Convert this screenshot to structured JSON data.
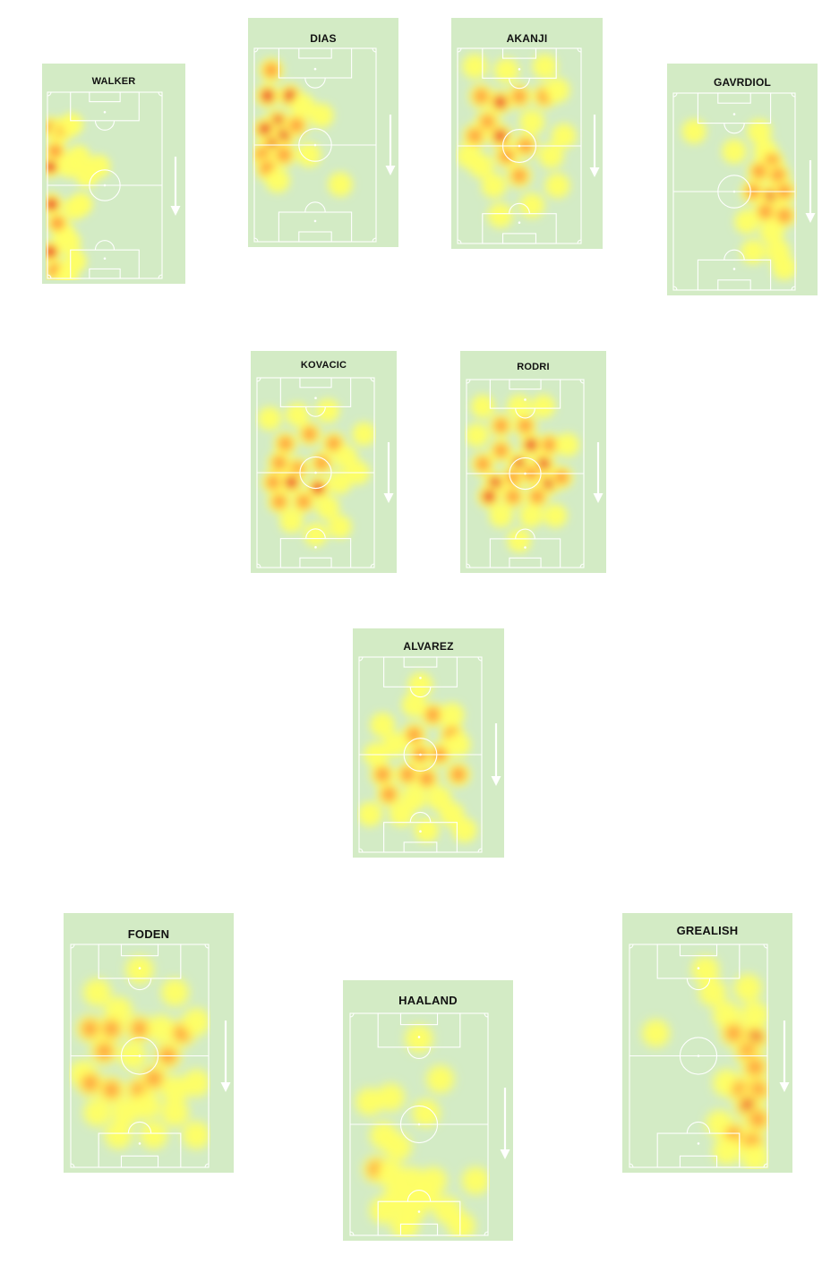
{
  "players": [
    {
      "id": "walker",
      "name": "WALKER",
      "blobs": [
        [
          5,
          20,
          3
        ],
        [
          4,
          40,
          3
        ],
        [
          5,
          60,
          3
        ],
        [
          4,
          85,
          3
        ],
        [
          12,
          22,
          2
        ],
        [
          16,
          20,
          2
        ],
        [
          8,
          32,
          2
        ],
        [
          22,
          18,
          1
        ],
        [
          20,
          40,
          1
        ],
        [
          28,
          35,
          1
        ],
        [
          35,
          45,
          1
        ],
        [
          45,
          40,
          1
        ],
        [
          30,
          60,
          1
        ],
        [
          25,
          62,
          1
        ],
        [
          15,
          75,
          1
        ],
        [
          10,
          70,
          2
        ],
        [
          20,
          80,
          1
        ],
        [
          25,
          90,
          1
        ],
        [
          8,
          95,
          2
        ],
        [
          18,
          98,
          1
        ]
      ]
    },
    {
      "id": "dias",
      "name": "DIAS",
      "blobs": [
        [
          15,
          12,
          2
        ],
        [
          12,
          25,
          3
        ],
        [
          30,
          25,
          3
        ],
        [
          20,
          38,
          3
        ],
        [
          10,
          42,
          3
        ],
        [
          25,
          45,
          3
        ],
        [
          35,
          40,
          2
        ],
        [
          15,
          50,
          3
        ],
        [
          8,
          55,
          2
        ],
        [
          25,
          55,
          2
        ],
        [
          12,
          62,
          2
        ],
        [
          20,
          68,
          1
        ],
        [
          40,
          30,
          1
        ],
        [
          55,
          35,
          1
        ],
        [
          70,
          70,
          1
        ],
        [
          45,
          55,
          1
        ]
      ]
    },
    {
      "id": "akanji",
      "name": "AKANJI",
      "blobs": [
        [
          15,
          10,
          1
        ],
        [
          40,
          12,
          1
        ],
        [
          70,
          10,
          1
        ],
        [
          20,
          25,
          2
        ],
        [
          35,
          28,
          3
        ],
        [
          50,
          25,
          2
        ],
        [
          70,
          25,
          2
        ],
        [
          25,
          38,
          2
        ],
        [
          35,
          45,
          3
        ],
        [
          60,
          38,
          1
        ],
        [
          80,
          22,
          1
        ],
        [
          15,
          45,
          2
        ],
        [
          40,
          55,
          2
        ],
        [
          55,
          50,
          2
        ],
        [
          75,
          55,
          1
        ],
        [
          20,
          60,
          1
        ],
        [
          30,
          70,
          1
        ],
        [
          50,
          65,
          2
        ],
        [
          80,
          70,
          1
        ],
        [
          10,
          55,
          1
        ],
        [
          60,
          80,
          1
        ],
        [
          35,
          85,
          1
        ],
        [
          85,
          45,
          1
        ]
      ]
    },
    {
      "id": "gavrdiol",
      "name": "GAVRDIOL",
      "blobs": [
        [
          70,
          20,
          1
        ],
        [
          75,
          30,
          1
        ],
        [
          80,
          35,
          2
        ],
        [
          70,
          40,
          2
        ],
        [
          85,
          42,
          2
        ],
        [
          65,
          50,
          2
        ],
        [
          80,
          52,
          3
        ],
        [
          90,
          50,
          2
        ],
        [
          75,
          60,
          2
        ],
        [
          90,
          62,
          2
        ],
        [
          60,
          65,
          1
        ],
        [
          80,
          70,
          1
        ],
        [
          65,
          80,
          1
        ],
        [
          85,
          80,
          1
        ],
        [
          90,
          88,
          1
        ],
        [
          18,
          20,
          1
        ],
        [
          50,
          30,
          1
        ]
      ]
    },
    {
      "id": "kovacic",
      "name": "KOVACIC",
      "blobs": [
        [
          12,
          22,
          1
        ],
        [
          35,
          20,
          1
        ],
        [
          60,
          18,
          1
        ],
        [
          25,
          35,
          2
        ],
        [
          45,
          30,
          2
        ],
        [
          65,
          35,
          2
        ],
        [
          20,
          45,
          2
        ],
        [
          35,
          48,
          2
        ],
        [
          55,
          45,
          2
        ],
        [
          75,
          42,
          1
        ],
        [
          15,
          55,
          2
        ],
        [
          30,
          55,
          3
        ],
        [
          52,
          58,
          3
        ],
        [
          70,
          55,
          1
        ],
        [
          20,
          65,
          2
        ],
        [
          40,
          65,
          2
        ],
        [
          60,
          68,
          1
        ],
        [
          85,
          50,
          1
        ],
        [
          30,
          75,
          1
        ],
        [
          70,
          78,
          1
        ],
        [
          50,
          82,
          1
        ],
        [
          90,
          30,
          1
        ]
      ]
    },
    {
      "id": "rodri",
      "name": "RODRI",
      "blobs": [
        [
          15,
          15,
          1
        ],
        [
          45,
          15,
          1
        ],
        [
          65,
          15,
          1
        ],
        [
          30,
          25,
          2
        ],
        [
          50,
          25,
          2
        ],
        [
          55,
          35,
          3
        ],
        [
          30,
          38,
          2
        ],
        [
          70,
          35,
          2
        ],
        [
          45,
          45,
          3
        ],
        [
          65,
          45,
          3
        ],
        [
          15,
          45,
          2
        ],
        [
          25,
          55,
          3
        ],
        [
          40,
          52,
          2
        ],
        [
          55,
          50,
          2
        ],
        [
          70,
          55,
          3
        ],
        [
          80,
          52,
          2
        ],
        [
          20,
          62,
          3
        ],
        [
          40,
          62,
          2
        ],
        [
          60,
          62,
          2
        ],
        [
          30,
          72,
          1
        ],
        [
          55,
          72,
          1
        ],
        [
          75,
          72,
          1
        ],
        [
          45,
          85,
          1
        ],
        [
          85,
          35,
          1
        ],
        [
          10,
          30,
          1
        ]
      ]
    },
    {
      "id": "alvarez",
      "name": "ALVAREZ",
      "blobs": [
        [
          50,
          15,
          1
        ],
        [
          45,
          25,
          1
        ],
        [
          60,
          30,
          2
        ],
        [
          75,
          30,
          1
        ],
        [
          20,
          35,
          1
        ],
        [
          45,
          40,
          2
        ],
        [
          75,
          40,
          2
        ],
        [
          80,
          45,
          1
        ],
        [
          30,
          45,
          1
        ],
        [
          15,
          50,
          1
        ],
        [
          50,
          50,
          2
        ],
        [
          65,
          50,
          2
        ],
        [
          20,
          60,
          2
        ],
        [
          40,
          60,
          2
        ],
        [
          55,
          62,
          2
        ],
        [
          80,
          60,
          2
        ],
        [
          25,
          70,
          2
        ],
        [
          45,
          72,
          1
        ],
        [
          65,
          72,
          1
        ],
        [
          35,
          80,
          1
        ],
        [
          75,
          80,
          1
        ],
        [
          55,
          88,
          1
        ],
        [
          85,
          88,
          1
        ],
        [
          10,
          80,
          1
        ]
      ]
    },
    {
      "id": "foden",
      "name": "FODEN",
      "blobs": [
        [
          50,
          12,
          1
        ],
        [
          20,
          22,
          1
        ],
        [
          75,
          22,
          1
        ],
        [
          35,
          30,
          1
        ],
        [
          15,
          38,
          2
        ],
        [
          30,
          38,
          2
        ],
        [
          50,
          38,
          2
        ],
        [
          65,
          38,
          1
        ],
        [
          80,
          40,
          2
        ],
        [
          90,
          35,
          1
        ],
        [
          25,
          48,
          2
        ],
        [
          45,
          50,
          1
        ],
        [
          70,
          50,
          2
        ],
        [
          10,
          58,
          1
        ],
        [
          15,
          62,
          2
        ],
        [
          30,
          65,
          2
        ],
        [
          50,
          65,
          2
        ],
        [
          60,
          60,
          2
        ],
        [
          75,
          65,
          1
        ],
        [
          90,
          62,
          1
        ],
        [
          20,
          75,
          1
        ],
        [
          40,
          75,
          1
        ],
        [
          55,
          72,
          1
        ],
        [
          75,
          75,
          1
        ],
        [
          35,
          85,
          1
        ],
        [
          60,
          85,
          1
        ],
        [
          90,
          85,
          1
        ]
      ]
    },
    {
      "id": "haaland",
      "name": "HAALAND",
      "blobs": [
        [
          50,
          12,
          1
        ],
        [
          65,
          30,
          1
        ],
        [
          15,
          40,
          1
        ],
        [
          30,
          38,
          1
        ],
        [
          55,
          45,
          1
        ],
        [
          25,
          55,
          1
        ],
        [
          35,
          60,
          1
        ],
        [
          20,
          70,
          2
        ],
        [
          30,
          72,
          1
        ],
        [
          45,
          75,
          1
        ],
        [
          60,
          75,
          1
        ],
        [
          35,
          82,
          1
        ],
        [
          55,
          82,
          1
        ],
        [
          25,
          88,
          1
        ],
        [
          45,
          88,
          1
        ],
        [
          70,
          88,
          1
        ],
        [
          40,
          95,
          1
        ],
        [
          80,
          95,
          1
        ],
        [
          90,
          75,
          1
        ]
      ]
    },
    {
      "id": "grealish",
      "name": "GREALISH",
      "blobs": [
        [
          55,
          12,
          1
        ],
        [
          60,
          22,
          1
        ],
        [
          85,
          20,
          1
        ],
        [
          70,
          32,
          1
        ],
        [
          90,
          32,
          1
        ],
        [
          75,
          40,
          2
        ],
        [
          90,
          42,
          3
        ],
        [
          85,
          48,
          2
        ],
        [
          90,
          55,
          2
        ],
        [
          70,
          62,
          1
        ],
        [
          80,
          65,
          2
        ],
        [
          92,
          65,
          2
        ],
        [
          85,
          72,
          3
        ],
        [
          92,
          78,
          2
        ],
        [
          65,
          80,
          1
        ],
        [
          75,
          85,
          2
        ],
        [
          88,
          88,
          2
        ],
        [
          70,
          92,
          1
        ],
        [
          90,
          95,
          1
        ],
        [
          20,
          40,
          1
        ]
      ]
    }
  ]
}
